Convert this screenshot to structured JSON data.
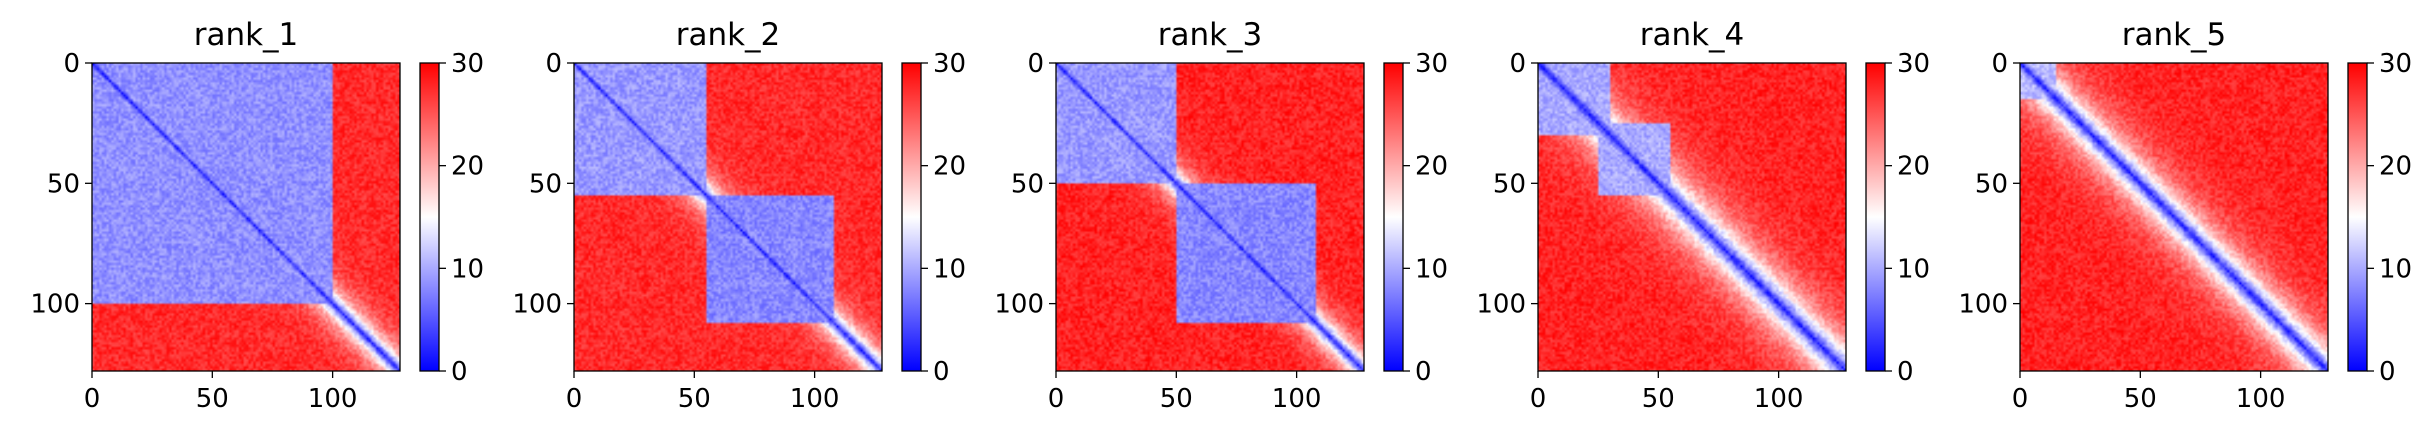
{
  "chart_data": [
    {
      "type": "heatmap",
      "title": "rank_1",
      "matrix_size": 128,
      "xlim": [
        0,
        128
      ],
      "ylim": [
        128,
        0
      ],
      "x_ticks": [
        0,
        50,
        100
      ],
      "y_ticks": [
        0,
        50,
        100
      ],
      "colorbar": {
        "min": 0,
        "max": 30,
        "ticks": [
          0,
          10,
          20,
          30
        ],
        "colormap": "bwr"
      },
      "blue_blocks": [
        {
          "start": 0,
          "end": 100,
          "value": 8.5
        },
        {
          "start": 0,
          "end": 20,
          "value": 9
        }
      ],
      "diagonal_width": 6,
      "background_value": 27.5
    },
    {
      "type": "heatmap",
      "title": "rank_2",
      "matrix_size": 128,
      "xlim": [
        0,
        128
      ],
      "ylim": [
        128,
        0
      ],
      "x_ticks": [
        0,
        50,
        100
      ],
      "y_ticks": [
        0,
        50,
        100
      ],
      "colorbar": {
        "min": 0,
        "max": 30,
        "ticks": [
          0,
          10,
          20,
          30
        ],
        "colormap": "bwr"
      },
      "blue_blocks": [
        {
          "start": 0,
          "end": 55,
          "value": 9
        },
        {
          "start": 55,
          "end": 108,
          "value": 8
        }
      ],
      "diagonal_width": 6,
      "background_value": 27.5
    },
    {
      "type": "heatmap",
      "title": "rank_3",
      "matrix_size": 128,
      "xlim": [
        0,
        128
      ],
      "ylim": [
        128,
        0
      ],
      "x_ticks": [
        0,
        50,
        100
      ],
      "y_ticks": [
        0,
        50,
        100
      ],
      "colorbar": {
        "min": 0,
        "max": 30,
        "ticks": [
          0,
          10,
          20,
          30
        ],
        "colormap": "bwr"
      },
      "blue_blocks": [
        {
          "start": 0,
          "end": 50,
          "value": 9
        },
        {
          "start": 50,
          "end": 108,
          "value": 8
        }
      ],
      "diagonal_width": 6,
      "background_value": 28
    },
    {
      "type": "heatmap",
      "title": "rank_4",
      "matrix_size": 128,
      "xlim": [
        0,
        128
      ],
      "ylim": [
        128,
        0
      ],
      "x_ticks": [
        0,
        50,
        100
      ],
      "y_ticks": [
        0,
        50,
        100
      ],
      "colorbar": {
        "min": 0,
        "max": 30,
        "ticks": [
          0,
          10,
          20,
          30
        ],
        "colormap": "bwr"
      },
      "blue_blocks": [
        {
          "start": 0,
          "end": 30,
          "value": 10
        },
        {
          "start": 25,
          "end": 55,
          "value": 10
        }
      ],
      "diagonal_width": 10,
      "background_value": 28
    },
    {
      "type": "heatmap",
      "title": "rank_5",
      "matrix_size": 128,
      "xlim": [
        0,
        128
      ],
      "ylim": [
        128,
        0
      ],
      "x_ticks": [
        0,
        50,
        100
      ],
      "y_ticks": [
        0,
        50,
        100
      ],
      "colorbar": {
        "min": 0,
        "max": 30,
        "ticks": [
          0,
          10,
          20,
          30
        ],
        "colormap": "bwr"
      },
      "blue_blocks": [
        {
          "start": 0,
          "end": 15,
          "value": 11
        }
      ],
      "diagonal_width": 9,
      "background_value": 28
    }
  ]
}
